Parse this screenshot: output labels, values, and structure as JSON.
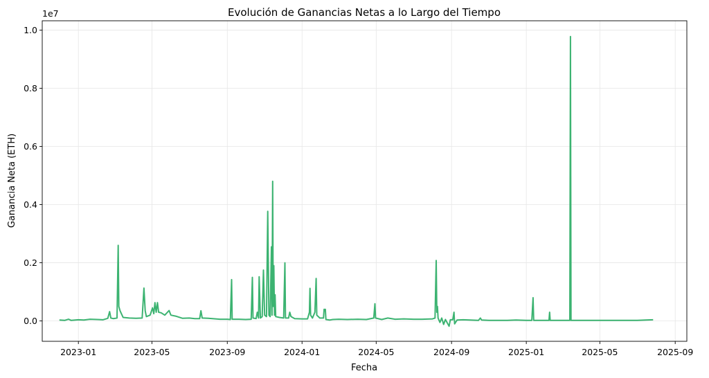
{
  "chart_data": {
    "type": "line",
    "title": "Evolución de Ganancias Netas a lo Largo del Tiempo",
    "xlabel": "Fecha",
    "ylabel": "Ganancia Neta (ETH)",
    "y_offset_label": "1e7",
    "y_scale": 10000000,
    "xlim": [
      "2022-11-03",
      "2025-09-20"
    ],
    "ylim": [
      -0.07,
      1.032
    ],
    "x_ticks": [
      {
        "date": "2023-01-01",
        "label": "2023-01"
      },
      {
        "date": "2023-05-01",
        "label": "2023-05"
      },
      {
        "date": "2023-09-01",
        "label": "2023-09"
      },
      {
        "date": "2024-01-01",
        "label": "2024-01"
      },
      {
        "date": "2024-05-01",
        "label": "2024-05"
      },
      {
        "date": "2024-09-01",
        "label": "2024-09"
      },
      {
        "date": "2025-01-01",
        "label": "2025-01"
      },
      {
        "date": "2025-05-01",
        "label": "2025-05"
      },
      {
        "date": "2025-09-01",
        "label": "2025-09"
      }
    ],
    "y_ticks": [
      {
        "value": 0.0,
        "label": "0.0"
      },
      {
        "value": 0.2,
        "label": "0.2"
      },
      {
        "value": 0.4,
        "label": "0.4"
      },
      {
        "value": 0.6,
        "label": "0.6"
      },
      {
        "value": 0.8,
        "label": "0.8"
      },
      {
        "value": 1.0,
        "label": "1.0"
      }
    ],
    "grid": true,
    "line_color": "#3cb371",
    "series": [
      {
        "points": [
          [
            "2022-12-01",
            0.003
          ],
          [
            "2022-12-10",
            0.002
          ],
          [
            "2022-12-16",
            0.006
          ],
          [
            "2022-12-20",
            0.002
          ],
          [
            "2023-01-01",
            0.004
          ],
          [
            "2023-01-10",
            0.003
          ],
          [
            "2023-01-20",
            0.006
          ],
          [
            "2023-02-01",
            0.005
          ],
          [
            "2023-02-10",
            0.004
          ],
          [
            "2023-02-18",
            0.009
          ],
          [
            "2023-02-21",
            0.032
          ],
          [
            "2023-02-23",
            0.01
          ],
          [
            "2023-02-27",
            0.008
          ],
          [
            "2023-03-05",
            0.01
          ],
          [
            "2023-03-07",
            0.26
          ],
          [
            "2023-03-08",
            0.05
          ],
          [
            "2023-03-10",
            0.035
          ],
          [
            "2023-03-15",
            0.012
          ],
          [
            "2023-03-25",
            0.01
          ],
          [
            "2023-04-05",
            0.009
          ],
          [
            "2023-04-15",
            0.01
          ],
          [
            "2023-04-18",
            0.113
          ],
          [
            "2023-04-20",
            0.035
          ],
          [
            "2023-04-22",
            0.015
          ],
          [
            "2023-04-28",
            0.02
          ],
          [
            "2023-05-02",
            0.045
          ],
          [
            "2023-05-04",
            0.025
          ],
          [
            "2023-05-06",
            0.063
          ],
          [
            "2023-05-08",
            0.03
          ],
          [
            "2023-05-10",
            0.063
          ],
          [
            "2023-05-12",
            0.03
          ],
          [
            "2023-05-16",
            0.028
          ],
          [
            "2023-05-22",
            0.02
          ],
          [
            "2023-05-29",
            0.036
          ],
          [
            "2023-06-01",
            0.02
          ],
          [
            "2023-06-10",
            0.016
          ],
          [
            "2023-06-20",
            0.009
          ],
          [
            "2023-07-01",
            0.01
          ],
          [
            "2023-07-10",
            0.008
          ],
          [
            "2023-07-18",
            0.008
          ],
          [
            "2023-07-20",
            0.035
          ],
          [
            "2023-07-22",
            0.01
          ],
          [
            "2023-08-01",
            0.009
          ],
          [
            "2023-08-20",
            0.006
          ],
          [
            "2023-09-01",
            0.006
          ],
          [
            "2023-09-06",
            0.005
          ],
          [
            "2023-09-08",
            0.142
          ],
          [
            "2023-09-09",
            0.006
          ],
          [
            "2023-09-20",
            0.006
          ],
          [
            "2023-10-01",
            0.005
          ],
          [
            "2023-10-10",
            0.006
          ],
          [
            "2023-10-12",
            0.15
          ],
          [
            "2023-10-13",
            0.01
          ],
          [
            "2023-10-18",
            0.008
          ],
          [
            "2023-10-20",
            0.03
          ],
          [
            "2023-10-22",
            0.01
          ],
          [
            "2023-10-23",
            0.152
          ],
          [
            "2023-10-25",
            0.01
          ],
          [
            "2023-10-28",
            0.015
          ],
          [
            "2023-10-30",
            0.175
          ],
          [
            "2023-11-01",
            0.02
          ],
          [
            "2023-11-04",
            0.015
          ],
          [
            "2023-11-06",
            0.377
          ],
          [
            "2023-11-08",
            0.02
          ],
          [
            "2023-11-10",
            0.015
          ],
          [
            "2023-11-12",
            0.255
          ],
          [
            "2023-11-13",
            0.02
          ],
          [
            "2023-11-14",
            0.48
          ],
          [
            "2023-11-15",
            0.05
          ],
          [
            "2023-11-16",
            0.19
          ],
          [
            "2023-11-17",
            0.02
          ],
          [
            "2023-11-18",
            0.09
          ],
          [
            "2023-11-19",
            0.015
          ],
          [
            "2023-11-25",
            0.012
          ],
          [
            "2023-12-02",
            0.01
          ],
          [
            "2023-12-04",
            0.2
          ],
          [
            "2023-12-05",
            0.01
          ],
          [
            "2023-12-10",
            0.01
          ],
          [
            "2023-12-12",
            0.03
          ],
          [
            "2023-12-14",
            0.015
          ],
          [
            "2023-12-20",
            0.008
          ],
          [
            "2024-01-01",
            0.007
          ],
          [
            "2024-01-10",
            0.007
          ],
          [
            "2024-01-13",
            0.03
          ],
          [
            "2024-01-14",
            0.112
          ],
          [
            "2024-01-15",
            0.02
          ],
          [
            "2024-01-18",
            0.01
          ],
          [
            "2024-01-22",
            0.03
          ],
          [
            "2024-01-24",
            0.146
          ],
          [
            "2024-01-25",
            0.02
          ],
          [
            "2024-01-30",
            0.01
          ],
          [
            "2024-02-05",
            0.01
          ],
          [
            "2024-02-06",
            0.04
          ],
          [
            "2024-02-07",
            0.035
          ],
          [
            "2024-02-08",
            0.04
          ],
          [
            "2024-02-09",
            0.005
          ],
          [
            "2024-02-15",
            0.003
          ],
          [
            "2024-02-20",
            0.005
          ],
          [
            "2024-03-01",
            0.006
          ],
          [
            "2024-03-15",
            0.005
          ],
          [
            "2024-04-01",
            0.006
          ],
          [
            "2024-04-15",
            0.005
          ],
          [
            "2024-04-27",
            0.01
          ],
          [
            "2024-04-29",
            0.059
          ],
          [
            "2024-04-30",
            0.01
          ],
          [
            "2024-05-10",
            0.005
          ],
          [
            "2024-05-20",
            0.01
          ],
          [
            "2024-06-01",
            0.006
          ],
          [
            "2024-06-15",
            0.007
          ],
          [
            "2024-07-01",
            0.006
          ],
          [
            "2024-07-15",
            0.006
          ],
          [
            "2024-08-01",
            0.007
          ],
          [
            "2024-08-05",
            0.01
          ],
          [
            "2024-08-07",
            0.208
          ],
          [
            "2024-08-08",
            0.03
          ],
          [
            "2024-08-09",
            0.05
          ],
          [
            "2024-08-10",
            0.01
          ],
          [
            "2024-08-13",
            -0.005
          ],
          [
            "2024-08-16",
            0.01
          ],
          [
            "2024-08-19",
            -0.012
          ],
          [
            "2024-08-22",
            0.005
          ],
          [
            "2024-08-28",
            -0.018
          ],
          [
            "2024-08-30",
            0.004
          ],
          [
            "2024-09-03",
            0.004
          ],
          [
            "2024-09-05",
            0.03
          ],
          [
            "2024-09-06",
            -0.01
          ],
          [
            "2024-09-10",
            0.003
          ],
          [
            "2024-09-20",
            0.004
          ],
          [
            "2024-10-01",
            0.003
          ],
          [
            "2024-10-15",
            0.002
          ],
          [
            "2024-10-18",
            0.01
          ],
          [
            "2024-10-20",
            0.003
          ],
          [
            "2024-11-01",
            0.002
          ],
          [
            "2024-12-01",
            0.002
          ],
          [
            "2024-12-15",
            0.003
          ],
          [
            "2025-01-01",
            0.002
          ],
          [
            "2025-01-10",
            0.002
          ],
          [
            "2025-01-12",
            0.08
          ],
          [
            "2025-01-13",
            0.002
          ],
          [
            "2025-01-25",
            0.002
          ],
          [
            "2025-02-07",
            0.002
          ],
          [
            "2025-02-08",
            0.03
          ],
          [
            "2025-02-09",
            0.002
          ],
          [
            "2025-02-20",
            0.002
          ],
          [
            "2025-03-13",
            0.002
          ],
          [
            "2025-03-14",
            0.978
          ],
          [
            "2025-03-15",
            0.002
          ],
          [
            "2025-04-01",
            0.002
          ],
          [
            "2025-05-01",
            0.002
          ],
          [
            "2025-05-15",
            0.002
          ],
          [
            "2025-06-01",
            0.002
          ],
          [
            "2025-06-15",
            0.002
          ],
          [
            "2025-07-01",
            0.002
          ],
          [
            "2025-07-15",
            0.003
          ],
          [
            "2025-07-27",
            0.004
          ]
        ]
      }
    ]
  }
}
